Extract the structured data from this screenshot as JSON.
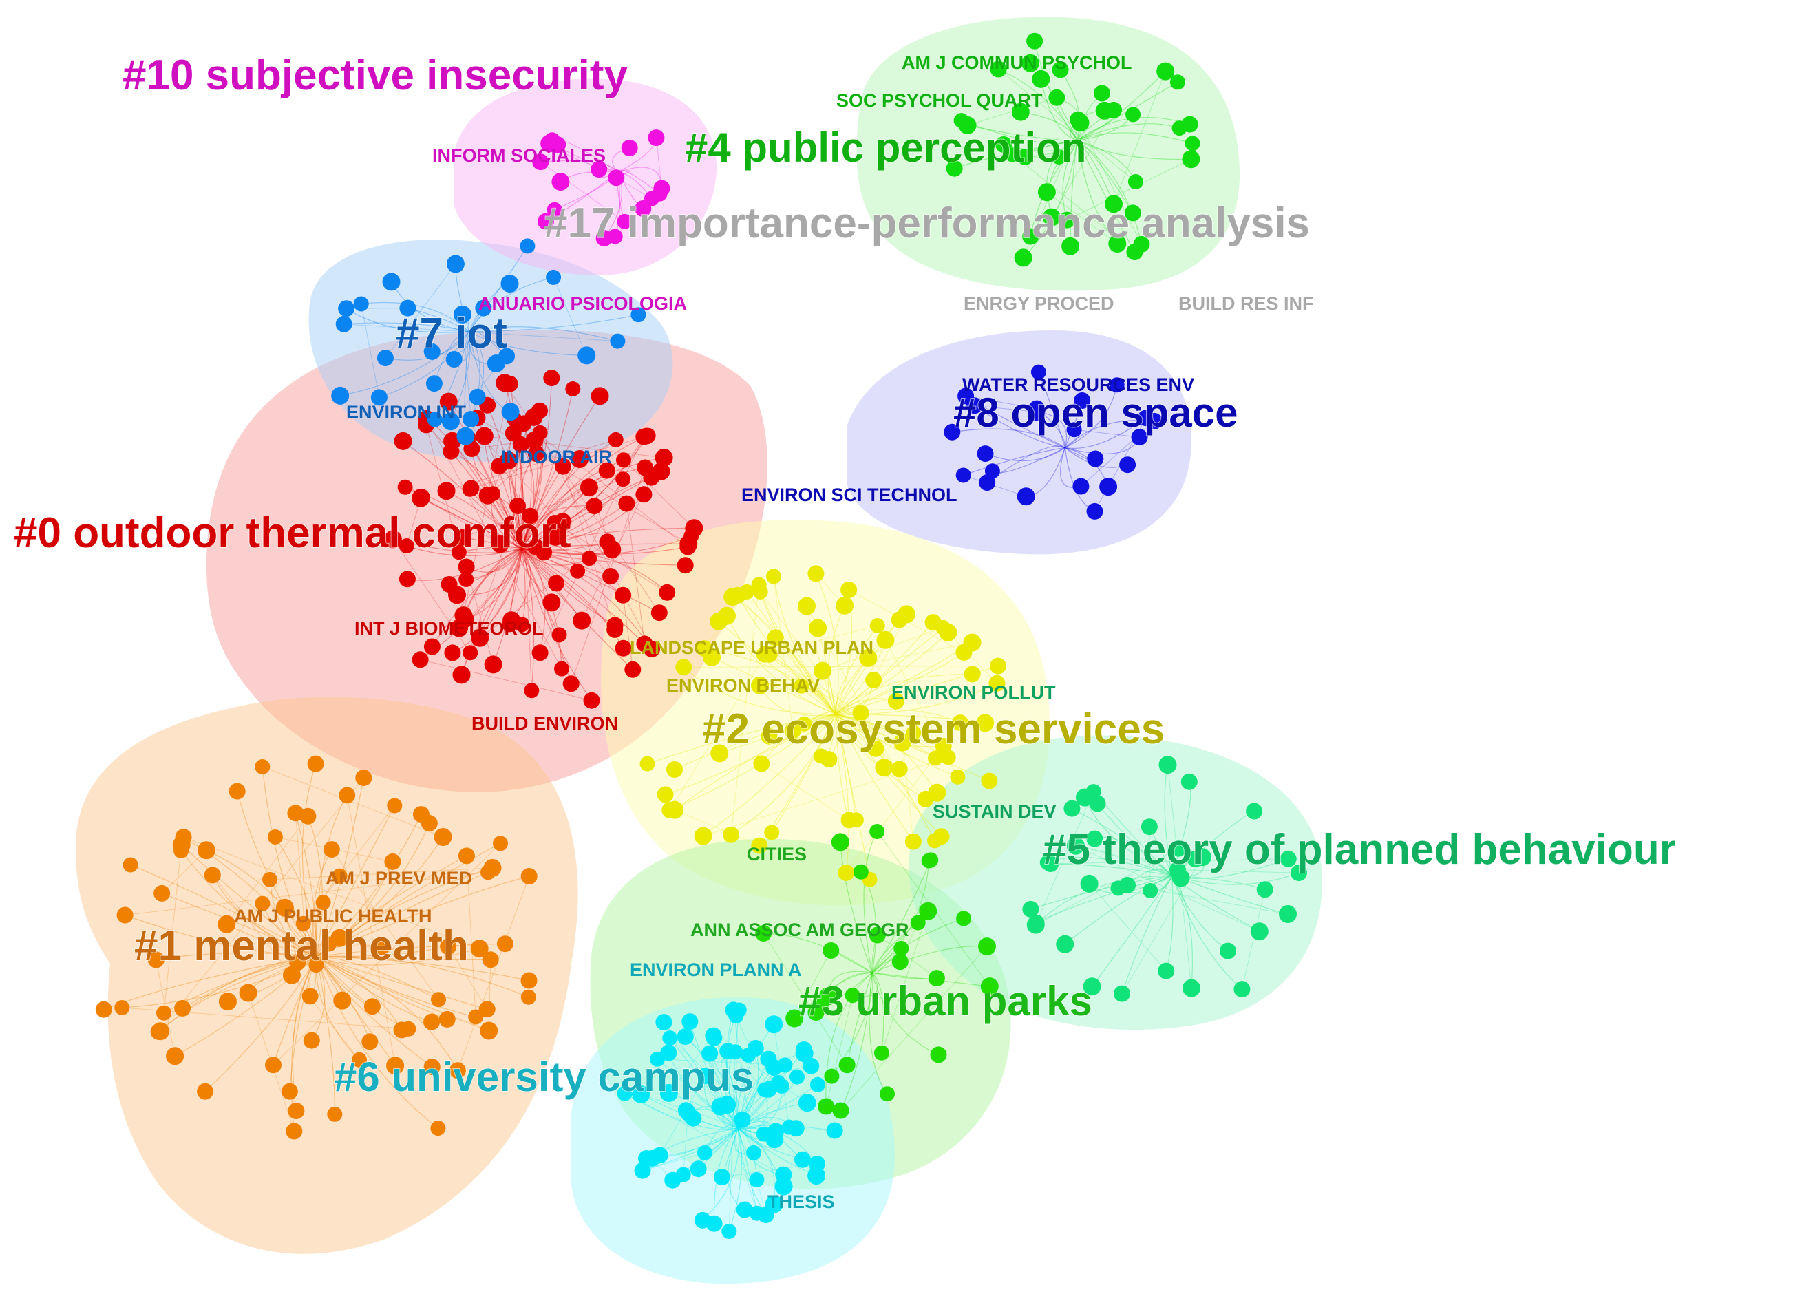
{
  "clusters": [
    {
      "id": "c0",
      "label": "#0 outdoor thermal comfort",
      "color": "#e40000",
      "hull_color": "#f9a0a0"
    },
    {
      "id": "c1",
      "label": "#1 mental health",
      "color": "#f08000",
      "hull_color": "#fcc890"
    },
    {
      "id": "c2",
      "label": "#2 ecosystem services",
      "color": "#eaea00",
      "hull_color": "#fcfcb0"
    },
    {
      "id": "c3",
      "label": "#3 urban parks",
      "color": "#22dd00",
      "hull_color": "#b4f5a4"
    },
    {
      "id": "c4",
      "label": "#4 public perception",
      "color": "#10dd10",
      "hull_color": "#b8f5b8"
    },
    {
      "id": "c5",
      "label": "#5 theory of planned behaviour",
      "color": "#12e27a",
      "hull_color": "#a8f5d0"
    },
    {
      "id": "c6",
      "label": "#6 university campus",
      "color": "#00e8f8",
      "hull_color": "#a8f7fc"
    },
    {
      "id": "c7",
      "label": "#7 iot",
      "color": "#0a84f0",
      "hull_color": "#a8d0f8"
    },
    {
      "id": "c8",
      "label": "#8 open space",
      "color": "#1010e0",
      "hull_color": "#c0c0f8"
    },
    {
      "id": "c10",
      "label": "#10 subjective insecurity",
      "color": "#f010e0",
      "hull_color": "#f8b8f4"
    },
    {
      "id": "c17",
      "label": "#17 importance-performance analysis",
      "color": "#b0b0b0",
      "hull_color": "#e0e0e0"
    }
  ],
  "cluster_label_colors": {
    "c0": "#d40000",
    "c1": "#c86a10",
    "c2": "#b8b000",
    "c3": "#1cb818",
    "c4": "#10b010",
    "c5": "#10b060",
    "c6": "#18b0c0",
    "c7": "#1060b8",
    "c8": "#0a0ab0",
    "c10": "#d010c0",
    "c17": "#a8a8a8"
  },
  "journals": [
    {
      "cluster": "c4",
      "label": "AM J COMMUN PSYCHOL",
      "color": "#10b010"
    },
    {
      "cluster": "c4",
      "label": "SOC PSYCHOL QUART",
      "color": "#10b010"
    },
    {
      "cluster": "c10",
      "label": "INFORM SOCIALES",
      "color": "#d010c0"
    },
    {
      "cluster": "c10",
      "label": "ANUARIO PSICOLOGIA",
      "color": "#d010c0"
    },
    {
      "cluster": "c17",
      "label": "ENRGY PROCED",
      "color": "#a8a8a8"
    },
    {
      "cluster": "c17",
      "label": "BUILD RES INF",
      "color": "#a8a8a8"
    },
    {
      "cluster": "c8",
      "label": "WATER RESOURCES ENV",
      "color": "#0a0ab0"
    },
    {
      "cluster": "c8",
      "label": "ENVIRON SCI TECHNOL",
      "color": "#0a0ab0"
    },
    {
      "cluster": "c7",
      "label": "ENVIRON INT",
      "color": "#1060b8"
    },
    {
      "cluster": "c7",
      "label": "INDOOR AIR",
      "color": "#1060b8"
    },
    {
      "cluster": "c0",
      "label": "INT J BIOMETEOROL",
      "color": "#c80000"
    },
    {
      "cluster": "c0",
      "label": "BUILD ENVIRON",
      "color": "#c80000"
    },
    {
      "cluster": "c2",
      "label": "LANDSCAPE URBAN PLAN",
      "color": "#b8b000"
    },
    {
      "cluster": "c2",
      "label": "ENVIRON BEHAV",
      "color": "#b8b000"
    },
    {
      "cluster": "c5",
      "label": "ENVIRON POLLUT",
      "color": "#10a060"
    },
    {
      "cluster": "c5",
      "label": "SUSTAIN DEV",
      "color": "#10a060"
    },
    {
      "cluster": "c3",
      "label": "CITIES",
      "color": "#20a820"
    },
    {
      "cluster": "c3",
      "label": "ANN ASSOC AM GEOGR",
      "color": "#20a820"
    },
    {
      "cluster": "c1",
      "label": "AM J PREV MED",
      "color": "#c86a10"
    },
    {
      "cluster": "c1",
      "label": "AM J PUBLIC HEALTH",
      "color": "#c86a10"
    },
    {
      "cluster": "c6",
      "label": "ENVIRON PLANN A",
      "color": "#10a8b8"
    },
    {
      "cluster": "c6",
      "label": "THESIS",
      "color": "#10a8b8"
    }
  ]
}
